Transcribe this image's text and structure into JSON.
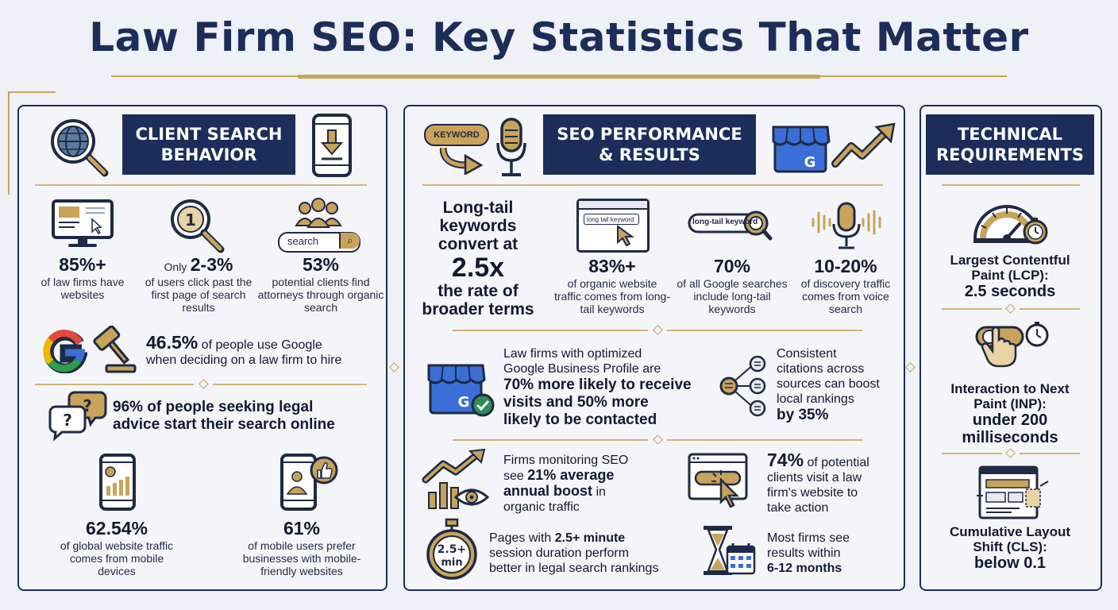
{
  "title": "Law Firm SEO: Key Statistics That Matter",
  "client": {
    "header": "CLIENT SEARCH\nBEHAVIOR",
    "stat1": {
      "value": "85%+",
      "desc": "of law firms have websites"
    },
    "stat2": {
      "prefix": "Only",
      "value": "2-3%",
      "desc": "of users click past the first page of search results"
    },
    "stat3": {
      "value": "53%",
      "desc": "potential clients find attorneys through organic search",
      "search_label": "search"
    },
    "google": {
      "value": "46.5%",
      "desc": " of people use Google",
      "desc2": "when deciding on a law firm to hire"
    },
    "online": {
      "line1": "96% of people seeking legal",
      "line2": "advice start their search online"
    },
    "mobile1": {
      "value": "62.54%",
      "desc": "of global website traffic comes from mobile devices"
    },
    "mobile2": {
      "value": "61%",
      "desc": "of mobile users prefer businesses with mobile-friendly websites"
    }
  },
  "seo": {
    "header": "SEO PERFORMANCE\n& RESULTS",
    "keyword_tag": "KEYWORD",
    "longtail": {
      "line1": "Long-tail",
      "line2": "keywords",
      "line3": "convert at",
      "value": "2.5x",
      "line4": "the rate of",
      "line5": "broader terms"
    },
    "stat1": {
      "value": "83%+",
      "desc": "of organic website traffic comes from long-tail keywords",
      "tag": "long tail keyword"
    },
    "stat2": {
      "value": "70%",
      "desc": "of all Google searches include long-tail keywords",
      "tag": "long-tail keyword"
    },
    "stat3": {
      "value": "10-20%",
      "desc": "of discovery traffic comes from voice search"
    },
    "gbp": {
      "line1": "Law firms with optimized",
      "line2": "Google Business Profile are",
      "bold1": "70% more likely to receive",
      "bold2": "visits and 50% more",
      "bold3": "likely to be contacted"
    },
    "citations": {
      "line1": "Consistent",
      "line2": "citations across",
      "line3": "sources can boost",
      "line4": "local rankings",
      "bold": "by 35%"
    },
    "monitor": {
      "line1": "Firms monitoring SEO",
      "pre": "see ",
      "bold1": "21% average",
      "bold2": "annual boost",
      "rest2": " in",
      "line4": "organic traffic"
    },
    "visit": {
      "value": "74%",
      "rest": " of potential",
      "line2": "clients visit a law",
      "line3": "firm's website to",
      "line4": "take action"
    },
    "session": {
      "pre": "Pages with ",
      "bold": "2.5+ minute",
      "line2": "session duration perform",
      "line3": "better in legal search rankings",
      "timer1": "2.5+",
      "timer2": "min"
    },
    "results": {
      "line1": "Most firms see",
      "line2": "results within",
      "bold": "6-12 months"
    }
  },
  "tech": {
    "header": "TECHNICAL\nREQUIREMENTS",
    "lcp": {
      "line1": "Largest Contentful",
      "line2": "Paint (LCP):",
      "value": "2.5 seconds"
    },
    "inp": {
      "line1": "Interaction to Next",
      "line2": "Paint (INP):",
      "value1": "under 200",
      "value2": "milliseconds"
    },
    "cls": {
      "line1": "Cumulative Layout",
      "line2": "Shift (CLS):",
      "value": "below 0.1"
    }
  },
  "colors": {
    "navy": "#1c2d5a",
    "gold": "#c9a35a",
    "background": "#eef1f5",
    "google_blue": "#3b6fd8",
    "check_green": "#2e8b57"
  },
  "icons": [
    "globe-magnifier-icon",
    "phone-download-icon",
    "monitor-icon",
    "magnifier-number-icon",
    "people-group-icon",
    "search-bar-icon",
    "google-g-icon",
    "gavel-icon",
    "chat-question-icon",
    "phone-chart-icon",
    "phone-user-like-icon",
    "keyword-arrow-icon",
    "microphone-icon",
    "storefront-icon",
    "trend-up-icon",
    "browser-search-icon",
    "search-pill-icon",
    "voice-mic-icon",
    "storefront-check-icon",
    "citation-network-icon",
    "chart-eye-icon",
    "browser-click-icon",
    "stopwatch-icon",
    "hourglass-calendar-icon",
    "speedometer-icon",
    "touch-timer-icon",
    "layout-shift-icon"
  ]
}
